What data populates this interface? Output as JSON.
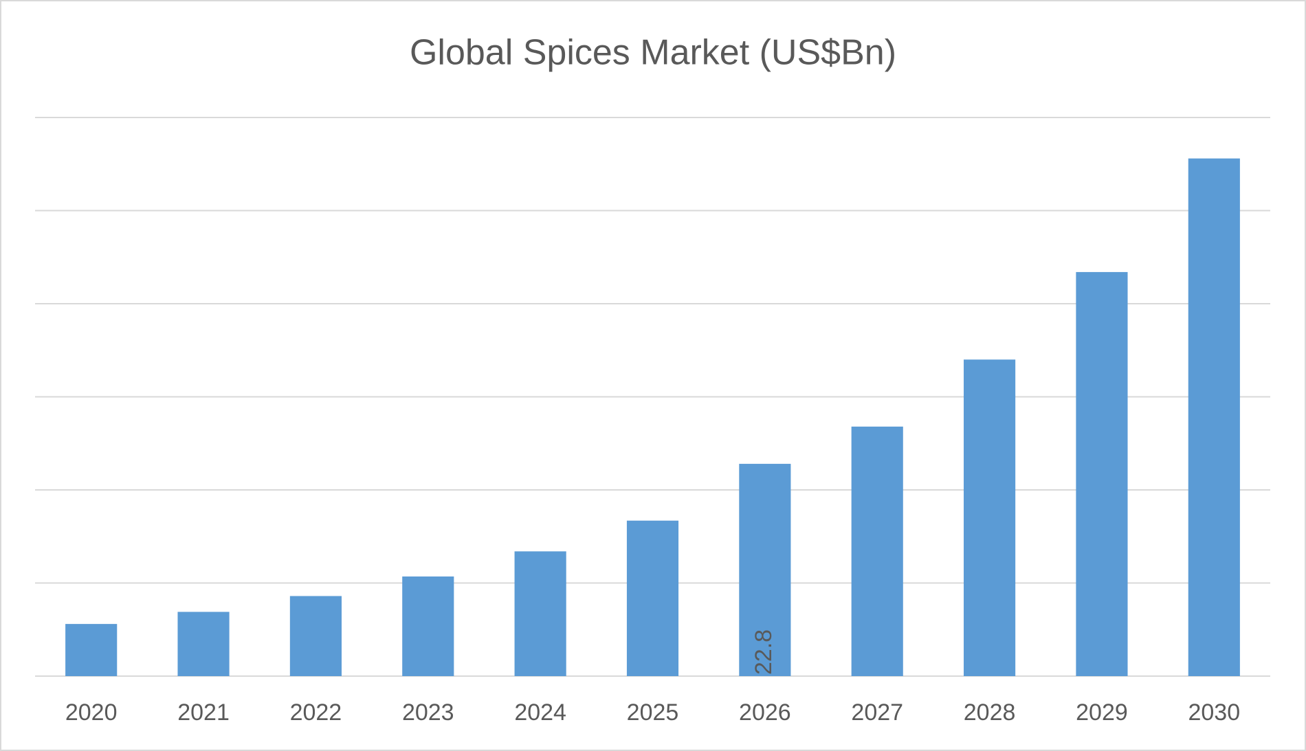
{
  "chart_data": {
    "type": "bar",
    "title": "Global Spices Market (US$Bn)",
    "categories": [
      "2020",
      "2021",
      "2022",
      "2023",
      "2024",
      "2025",
      "2026",
      "2027",
      "2028",
      "2029",
      "2030"
    ],
    "values": [
      5.6,
      6.9,
      8.6,
      10.7,
      13.4,
      16.7,
      22.8,
      26.8,
      34.0,
      43.4,
      55.6
    ],
    "value_labels": [
      null,
      null,
      null,
      null,
      null,
      null,
      "22.8",
      null,
      null,
      null,
      null
    ],
    "color": "#5b9bd5",
    "ylim": [
      0,
      60
    ],
    "yticks": [
      0,
      10,
      20,
      30,
      40,
      50,
      60
    ],
    "grid": true
  }
}
